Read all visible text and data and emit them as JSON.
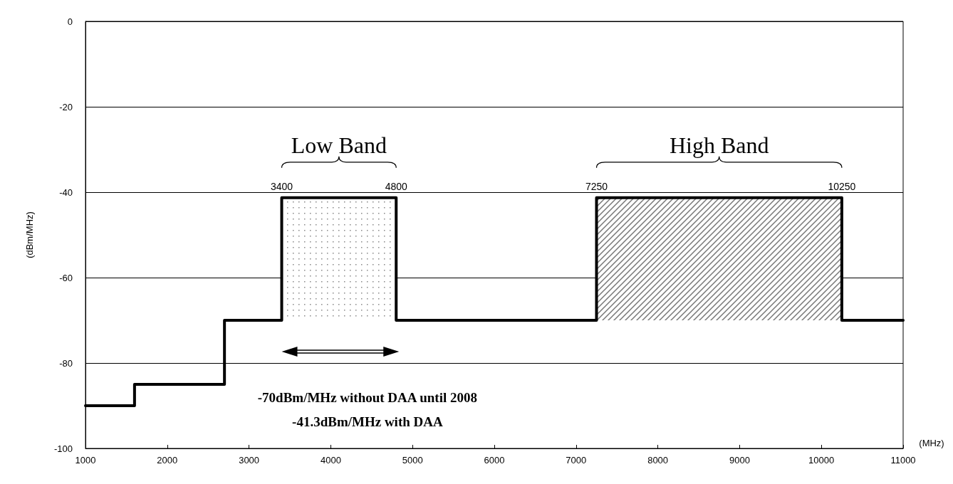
{
  "chart_data": {
    "type": "step",
    "ylabel": "(dBm/MHz)",
    "xlabel": "(MHz)",
    "x": [
      1000,
      1600,
      2700,
      3400,
      4800,
      7250,
      10250,
      11000
    ],
    "series": [
      {
        "color": "#000000",
        "values": [
          -90,
          -85,
          -70,
          -41.3,
          -70,
          -41.3,
          -70,
          -70
        ]
      }
    ],
    "xlim": [
      1000,
      11000
    ],
    "xticks": [
      1000,
      2000,
      3000,
      4000,
      5000,
      6000,
      7000,
      8000,
      9000,
      10000,
      11000
    ],
    "ylim": [
      -100,
      0
    ],
    "yticks": [
      -100,
      -80,
      -60,
      -40,
      -20,
      0
    ],
    "grid": "y",
    "marker": "none",
    "line_style": "solid",
    "bands": [
      {
        "axis": "x",
        "from": 3400,
        "to": 4800,
        "label": "Low Band"
      },
      {
        "axis": "x",
        "from": 7250,
        "to": 10250,
        "label": "High Band"
      }
    ],
    "annotations": [
      "3400",
      "4800",
      "7250",
      "10250",
      "-70dBm/MHz without DAA until 2008",
      "-41.3dBm/MHz with DAA"
    ]
  }
}
